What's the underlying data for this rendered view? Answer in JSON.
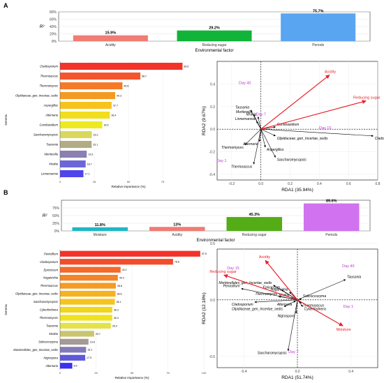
{
  "panels": {
    "a": "A",
    "b": "B"
  },
  "chart_data": [
    {
      "id": "A-top",
      "type": "bar",
      "ylabel": "R²",
      "xlabel": "Environmental factor",
      "categories": [
        "Acidity",
        "Reducing sugar",
        "Periods"
      ],
      "values": [
        15.9,
        29.2,
        75.7
      ],
      "value_labels": [
        "15.9%",
        "29.2%",
        "75.7%"
      ],
      "colors": [
        "#F07C74",
        "#12B339",
        "#5AA5F2"
      ],
      "ylim": [
        0,
        80
      ],
      "yticks": [
        0,
        20,
        40,
        60,
        80
      ],
      "ytick_labels": [
        "0%",
        "20%",
        "40%",
        "60%",
        "80%"
      ]
    },
    {
      "id": "A-left",
      "type": "bar",
      "orientation": "horizontal",
      "xlabel": "Relative importance (%)",
      "ylabel": "Genera",
      "categories": [
        "Cladosporium",
        "Thermoascus",
        "Thermomyces",
        "Olpidiaceae_gen_Incertae_sedis",
        "Aspergillus",
        "Alternaria",
        "Curvibasidium",
        "Saccharomycopsis",
        "Tausonia",
        "Mortierella",
        "Mrakia",
        "Linnemannia"
      ],
      "values": [
        89.5,
        58.7,
        45.6,
        40.3,
        37.7,
        36.4,
        30.9,
        23.2,
        23.1,
        19.5,
        18.7,
        17.1
      ],
      "value_labels": [
        "89.5",
        "58.7",
        "45.6",
        "40.3",
        "37.7",
        "36.4",
        "30.9",
        "23.2",
        "23.1",
        "19.5",
        "18.7",
        "17.1"
      ],
      "colors": [
        "#F2332A",
        "#F5552D",
        "#F57A28",
        "#F49A22",
        "#F6C21E",
        "#F2DE1E",
        "#EDEA22",
        "#D9D85C",
        "#B1AB86",
        "#8A80B2",
        "#6C67D8",
        "#4E45EA"
      ],
      "xlim": [
        0,
        100
      ],
      "xticks": [
        0,
        25,
        50,
        75
      ],
      "xtick_labels": [
        "0",
        "25",
        "50",
        "75"
      ]
    },
    {
      "id": "A-right",
      "type": "scatter",
      "kind": "RDA biplot",
      "xlabel": "RDA1 (35.94%)",
      "ylabel": "RDA2 (9.67%)",
      "xlim": [
        -0.3,
        0.8
      ],
      "ylim": [
        -0.45,
        0.6
      ],
      "xticks": [
        -0.2,
        0,
        0.2,
        0.4,
        0.6,
        0.8
      ],
      "xtick_labels": [
        "-0.2",
        "0.0",
        "0.2",
        "0.4",
        "0.6",
        "0.8"
      ],
      "yticks": [
        -0.4,
        -0.2,
        0,
        0.2,
        0.4
      ],
      "ytick_labels": [
        "-0.4",
        "-0.2",
        "0.0",
        "0.2",
        "0.4"
      ],
      "env_vectors": [
        {
          "label": "Acidity",
          "x": 0.47,
          "y": 0.48
        },
        {
          "label": "Reducing sugar",
          "x": 0.72,
          "y": 0.25
        }
      ],
      "species_vectors": [
        {
          "label": "Tausonia",
          "x": -0.07,
          "y": 0.17
        },
        {
          "label": "Mortierella",
          "x": -0.05,
          "y": 0.13
        },
        {
          "label": "Mrakia",
          "x": -0.02,
          "y": 0.11
        },
        {
          "label": "Linnemannia",
          "x": -0.03,
          "y": 0.07
        },
        {
          "label": "Curvibasidium",
          "x": 0.1,
          "y": 0.02
        },
        {
          "label": "Cladosporium",
          "x": 0.77,
          "y": -0.06
        },
        {
          "label": "Olpidiaceae_gen_Incertae_sedis",
          "x": 0.1,
          "y": -0.06
        },
        {
          "label": "Thermomyces",
          "x": -0.11,
          "y": -0.14
        },
        {
          "label": "Alternaria",
          "x": -0.01,
          "y": -0.11
        },
        {
          "label": "Aspergillus",
          "x": 0.03,
          "y": -0.16
        },
        {
          "label": "Saccharomycopsis",
          "x": 0.1,
          "y": -0.25
        },
        {
          "label": "Thermoascus",
          "x": -0.05,
          "y": -0.31
        }
      ],
      "sites": [
        {
          "label": "Day 40",
          "x": -0.11,
          "y": 0.4
        },
        {
          "label": "Day 7",
          "x": 0.0,
          "y": 0.12
        },
        {
          "label": "Day 15",
          "x": 0.44,
          "y": 0.0
        },
        {
          "label": "Day 1",
          "x": -0.27,
          "y": -0.29
        }
      ]
    },
    {
      "id": "B-top",
      "type": "bar",
      "ylabel": "R²",
      "xlabel": "Environmental factor",
      "categories": [
        "Moisture",
        "Acidity",
        "Reducing sugar",
        "Periods"
      ],
      "values": [
        11.8,
        13,
        45.3,
        89.6
      ],
      "value_labels": [
        "11.8%",
        "13%",
        "45.3%",
        "89.6%"
      ],
      "colors": [
        "#1CB9C4",
        "#F07C74",
        "#54AD16",
        "#D173F0"
      ],
      "ylim": [
        0,
        100
      ],
      "yticks": [
        0,
        25,
        50,
        75
      ],
      "ytick_labels": [
        "0%",
        "25%",
        "50%",
        "75%"
      ]
    },
    {
      "id": "B-left",
      "type": "bar",
      "orientation": "horizontal",
      "xlabel": "Relative importance (%)",
      "ylabel": "Genera",
      "categories": [
        "Penicillium",
        "Cladosporium",
        "Epicoccum",
        "Naganishia",
        "Thermoascus",
        "Olpidiaceae_gen_Incertae_sedis",
        "Saccharomycopsis",
        "Cyberlindnera",
        "Thermomyces",
        "Tausonia",
        "Mrakia",
        "Solicoccozyma",
        "Mortierellales_gen_Incertae_sedis",
        "Nigrospora",
        "Alternaria"
      ],
      "values": [
        97.5,
        78.6,
        42.1,
        40.2,
        38.8,
        38.6,
        38.1,
        36.3,
        36.3,
        35.3,
        23.7,
        19.8,
        18.1,
        17.5,
        8.5
      ],
      "value_labels": [
        "97.5",
        "78.6",
        "42.1",
        "40.2",
        "38.8",
        "38.6",
        "38.1",
        "36.3",
        "36.3",
        "35.3",
        "23.7",
        "19.8",
        "18.1",
        "17.5",
        "8.5"
      ],
      "colors": [
        "#F2332A",
        "#F24E2C",
        "#F46A2A",
        "#F58426",
        "#F49C22",
        "#F6B21F",
        "#F6C41E",
        "#F2D51E",
        "#EFE21F",
        "#E2E24A",
        "#C8C56E",
        "#A59A94",
        "#837BB8",
        "#5F59DA",
        "#3B2FF0"
      ],
      "xlim": [
        0,
        100
      ],
      "xticks": [
        0,
        25,
        50,
        75,
        100
      ],
      "xtick_labels": [
        "0",
        "25",
        "50",
        "75",
        "100"
      ]
    },
    {
      "id": "B-right",
      "type": "scatter",
      "kind": "RDA biplot",
      "xlabel": "RDA1 (51.74%)",
      "ylabel": "RDA2 (12.18%)",
      "xlim": [
        -0.6,
        0.6
      ],
      "ylim": [
        -0.6,
        0.45
      ],
      "xticks": [
        -0.4,
        0,
        0.4
      ],
      "xtick_labels": [
        "-0.4",
        "0.0",
        "0.4"
      ],
      "yticks": [
        -0.5,
        0,
        0.5
      ],
      "ytick_labels": [
        "-0.5",
        "0.0",
        "0.5"
      ],
      "env_vectors": [
        {
          "label": "Acidity",
          "x": -0.24,
          "y": 0.35
        },
        {
          "label": "Reducing sugar",
          "x": -0.55,
          "y": 0.22
        },
        {
          "label": "Moisture",
          "x": 0.34,
          "y": -0.23
        }
      ],
      "species_vectors": [
        {
          "label": "Tausonia",
          "x": 0.36,
          "y": 0.18
        },
        {
          "label": "Mortierellales_gen_Incertae_sedis",
          "x": -0.18,
          "y": 0.13
        },
        {
          "label": "Epicoccum",
          "x": -0.12,
          "y": 0.09
        },
        {
          "label": "Naganishia",
          "x": -0.06,
          "y": 0.07
        },
        {
          "label": "Penicillium",
          "x": -0.42,
          "y": 0.1
        },
        {
          "label": "Thermomyces",
          "x": -0.14,
          "y": 0.03
        },
        {
          "label": "Mrakia",
          "x": -0.05,
          "y": 0.02
        },
        {
          "label": "Solicoccozyma",
          "x": 0.03,
          "y": 0.01
        },
        {
          "label": "Cladosporium",
          "x": -0.32,
          "y": -0.02
        },
        {
          "label": "Alternaria",
          "x": -0.03,
          "y": -0.02
        },
        {
          "label": "Thermoascus",
          "x": 0.03,
          "y": -0.03
        },
        {
          "label": "Olpidiaceae_gen_Incertae_sedis",
          "x": -0.1,
          "y": -0.06
        },
        {
          "label": "Cyberlindnera",
          "x": 0.04,
          "y": -0.06
        },
        {
          "label": "Nigrospora",
          "x": -0.01,
          "y": -0.12
        },
        {
          "label": "Saccharomycopsis",
          "x": -0.07,
          "y": -0.45
        }
      ],
      "sites": [
        {
          "label": "Day 40",
          "x": 0.38,
          "y": 0.29
        },
        {
          "label": "Day 15",
          "x": -0.48,
          "y": 0.27
        },
        {
          "label": "Day 1",
          "x": 0.38,
          "y": -0.07
        },
        {
          "label": "Day 7",
          "x": -0.03,
          "y": -0.47
        }
      ]
    }
  ]
}
